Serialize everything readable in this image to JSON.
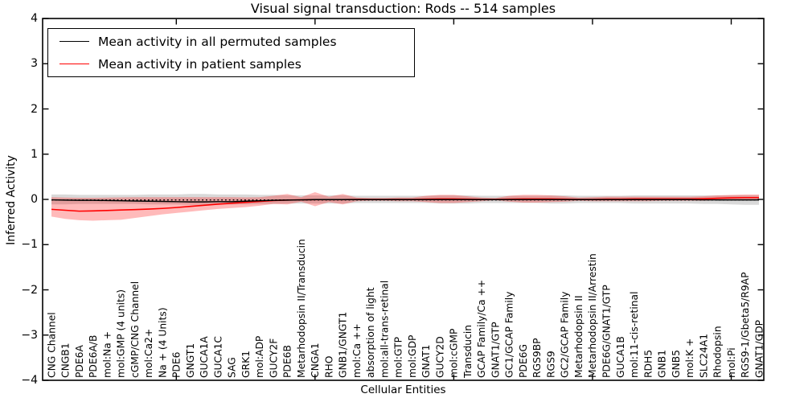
{
  "chart_data": {
    "type": "line",
    "title": "Visual signal transduction: Rods -- 514 samples",
    "xlabel": "Cellular Entities",
    "ylabel": "Inferred Activity",
    "ylim": [
      -4,
      4
    ],
    "grid": false,
    "legend_position": "upper left",
    "yticks": [
      {
        "value": 4,
        "label": "4"
      },
      {
        "value": 3,
        "label": "3"
      },
      {
        "value": 2,
        "label": "2"
      },
      {
        "value": 1,
        "label": "1"
      },
      {
        "value": 0,
        "label": "0"
      },
      {
        "value": -1,
        "label": "−1"
      },
      {
        "value": -2,
        "label": "−2"
      },
      {
        "value": -3,
        "label": "−3"
      },
      {
        "value": -4,
        "label": "−4"
      }
    ],
    "xtick_major_indices": [
      9,
      19,
      29,
      39,
      49
    ],
    "categories": [
      "CNG Channel",
      "CNGB1",
      "PDE6A",
      "PDE6A/B",
      "mol:Na +",
      "mol:GMP (4 units)",
      "cGMP/CNG Channel",
      "mol:Ca2+",
      "Na + (4 Units)",
      "PDE6",
      "GNGT1",
      "GUCA1A",
      "GUCA1C",
      "SAG",
      "GRK1",
      "mol:ADP",
      "GUCY2F",
      "PDE6B",
      "Metarhodopsin II/Transducin",
      "CNGA1",
      "RHO",
      "GNB1/GNGT1",
      "mol:Ca ++",
      "absorption of light",
      "mol:all-trans-retinal",
      "mol:GTP",
      "mol:GDP",
      "GNAT1",
      "GUCY2D",
      "mol:cGMP",
      "Transducin",
      "GCAP Family/Ca ++",
      "GNAT1/GTP",
      "GC1/GCAP Family",
      "PDE6G",
      "RGS9BP",
      "RGS9",
      "GC2/GCAP Family",
      "Metarhodopsin II",
      "Metarhodopsin II/Arrestin",
      "PDE6G/GNAT1/GTP",
      "GUCA1B",
      "mol:11-cis-retinal",
      "RDH5",
      "GNB1",
      "GNB5",
      "mol:K +",
      "SLC24A1",
      "Rhodopsin",
      "mol:Pi",
      "RGS9-1/Gbeta5/R9AP",
      "GNAT1/GDP"
    ],
    "legend": {
      "entries": [
        {
          "label": "Mean activity in all permuted samples",
          "color": "#000000"
        },
        {
          "label": "Mean activity in patient samples",
          "color": "#ff0000"
        }
      ]
    },
    "series": [
      {
        "name": "Mean activity in patient samples",
        "color": "#ff0000",
        "style": "solid",
        "width": 1.6,
        "values": [
          -0.22,
          -0.24,
          -0.26,
          -0.255,
          -0.245,
          -0.235,
          -0.225,
          -0.215,
          -0.2,
          -0.18,
          -0.155,
          -0.13,
          -0.105,
          -0.085,
          -0.065,
          -0.045,
          -0.025,
          -0.015,
          -0.01,
          -0.005,
          -0.005,
          -0.005,
          0,
          0,
          0,
          0,
          0,
          0.005,
          0.01,
          0.01,
          0.005,
          0,
          0,
          0.005,
          0.01,
          0.01,
          0.01,
          0.005,
          0,
          0,
          0.005,
          0.005,
          0.01,
          0.01,
          0.01,
          0.01,
          0.01,
          0.015,
          0.025,
          0.035,
          0.04,
          0.04
        ]
      },
      {
        "name": "Mean activity in all permuted samples",
        "color": "#000000",
        "style": "solid",
        "width": 1.5,
        "values": [
          -0.01,
          -0.015,
          -0.02,
          -0.02,
          -0.025,
          -0.03,
          -0.035,
          -0.04,
          -0.045,
          -0.05,
          -0.055,
          -0.055,
          -0.05,
          -0.05,
          -0.04,
          -0.03,
          -0.02,
          -0.015,
          -0.01,
          -0.005,
          -0.005,
          -0.005,
          -0.005,
          -0.005,
          -0.005,
          -0.005,
          -0.005,
          -0.005,
          -0.005,
          -0.005,
          -0.005,
          -0.005,
          -0.005,
          -0.005,
          -0.005,
          -0.005,
          -0.005,
          -0.005,
          -0.005,
          -0.005,
          -0.005,
          -0.005,
          -0.005,
          -0.005,
          -0.005,
          -0.005,
          -0.005,
          -0.01,
          -0.01,
          -0.01,
          -0.01,
          -0.01
        ]
      },
      {
        "name": "permuted dotted overlay",
        "color": "#000000",
        "style": "dotted",
        "width": 1.3,
        "values": [
          -0.012,
          -0.012,
          -0.012,
          -0.012,
          -0.012,
          -0.012,
          -0.012,
          -0.012,
          -0.012,
          -0.012,
          -0.012,
          -0.012,
          -0.012,
          -0.012,
          -0.012,
          -0.012,
          -0.012,
          -0.012,
          -0.012,
          -0.012,
          -0.012,
          -0.012,
          -0.012,
          -0.012,
          -0.012,
          -0.012,
          -0.012,
          -0.012,
          -0.012,
          -0.012,
          -0.012,
          -0.012,
          -0.012,
          -0.012,
          -0.012,
          -0.012,
          -0.012,
          -0.012,
          -0.012,
          -0.012,
          -0.012,
          -0.012,
          -0.012,
          -0.012,
          -0.012,
          -0.012,
          -0.012,
          -0.012,
          -0.012,
          -0.012,
          -0.012,
          -0.012
        ]
      }
    ],
    "bands": [
      {
        "name": "permuted range",
        "color": "rgba(128,128,128,0.30)",
        "upper": [
          0.11,
          0.11,
          0.1,
          0.1,
          0.1,
          0.1,
          0.1,
          0.11,
          0.11,
          0.11,
          0.12,
          0.12,
          0.11,
          0.11,
          0.11,
          0.1,
          0.1,
          0.09,
          0.09,
          0.09,
          0.09,
          0.09,
          0.08,
          0.08,
          0.08,
          0.08,
          0.08,
          0.08,
          0.09,
          0.09,
          0.09,
          0.08,
          0.08,
          0.08,
          0.08,
          0.08,
          0.09,
          0.09,
          0.08,
          0.08,
          0.08,
          0.08,
          0.09,
          0.09,
          0.09,
          0.09,
          0.09,
          0.09,
          0.09,
          0.09,
          0.09,
          0.09
        ],
        "lower": [
          -0.11,
          -0.11,
          -0.1,
          -0.1,
          -0.1,
          -0.1,
          -0.1,
          -0.11,
          -0.11,
          -0.11,
          -0.12,
          -0.12,
          -0.11,
          -0.11,
          -0.11,
          -0.1,
          -0.1,
          -0.09,
          -0.09,
          -0.09,
          -0.09,
          -0.09,
          -0.08,
          -0.08,
          -0.08,
          -0.08,
          -0.08,
          -0.08,
          -0.09,
          -0.09,
          -0.09,
          -0.08,
          -0.08,
          -0.08,
          -0.08,
          -0.08,
          -0.09,
          -0.09,
          -0.08,
          -0.08,
          -0.08,
          -0.08,
          -0.09,
          -0.09,
          -0.09,
          -0.09,
          -0.09,
          -0.1,
          -0.1,
          -0.11,
          -0.12,
          -0.12
        ]
      },
      {
        "name": "patient range",
        "color": "rgba(255,0,0,0.27)",
        "upper": [
          0.05,
          0.04,
          0.035,
          0.035,
          0.04,
          0.045,
          0.05,
          0.05,
          0.05,
          0.05,
          0.05,
          0.05,
          0.05,
          0.05,
          0.045,
          0.05,
          0.08,
          0.12,
          0.05,
          0.16,
          0.06,
          0.12,
          0.04,
          0.03,
          0.03,
          0.04,
          0.04,
          0.08,
          0.1,
          0.1,
          0.07,
          0.04,
          0.03,
          0.08,
          0.1,
          0.1,
          0.09,
          0.07,
          0.04,
          0.05,
          0.06,
          0.06,
          0.06,
          0.06,
          0.06,
          0.06,
          0.06,
          0.07,
          0.09,
          0.1,
          0.11,
          0.11
        ],
        "lower": [
          -0.38,
          -0.43,
          -0.46,
          -0.47,
          -0.46,
          -0.45,
          -0.41,
          -0.37,
          -0.33,
          -0.3,
          -0.27,
          -0.24,
          -0.21,
          -0.19,
          -0.17,
          -0.14,
          -0.1,
          -0.11,
          -0.05,
          -0.15,
          -0.06,
          -0.11,
          -0.04,
          -0.03,
          -0.03,
          -0.04,
          -0.04,
          -0.06,
          -0.08,
          -0.08,
          -0.06,
          -0.04,
          -0.02,
          -0.05,
          -0.07,
          -0.07,
          -0.06,
          -0.05,
          -0.03,
          -0.04,
          -0.04,
          -0.04,
          -0.04,
          -0.04,
          -0.03,
          -0.03,
          -0.03,
          -0.03,
          -0.02,
          -0.02,
          -0.02,
          -0.02
        ]
      }
    ]
  }
}
